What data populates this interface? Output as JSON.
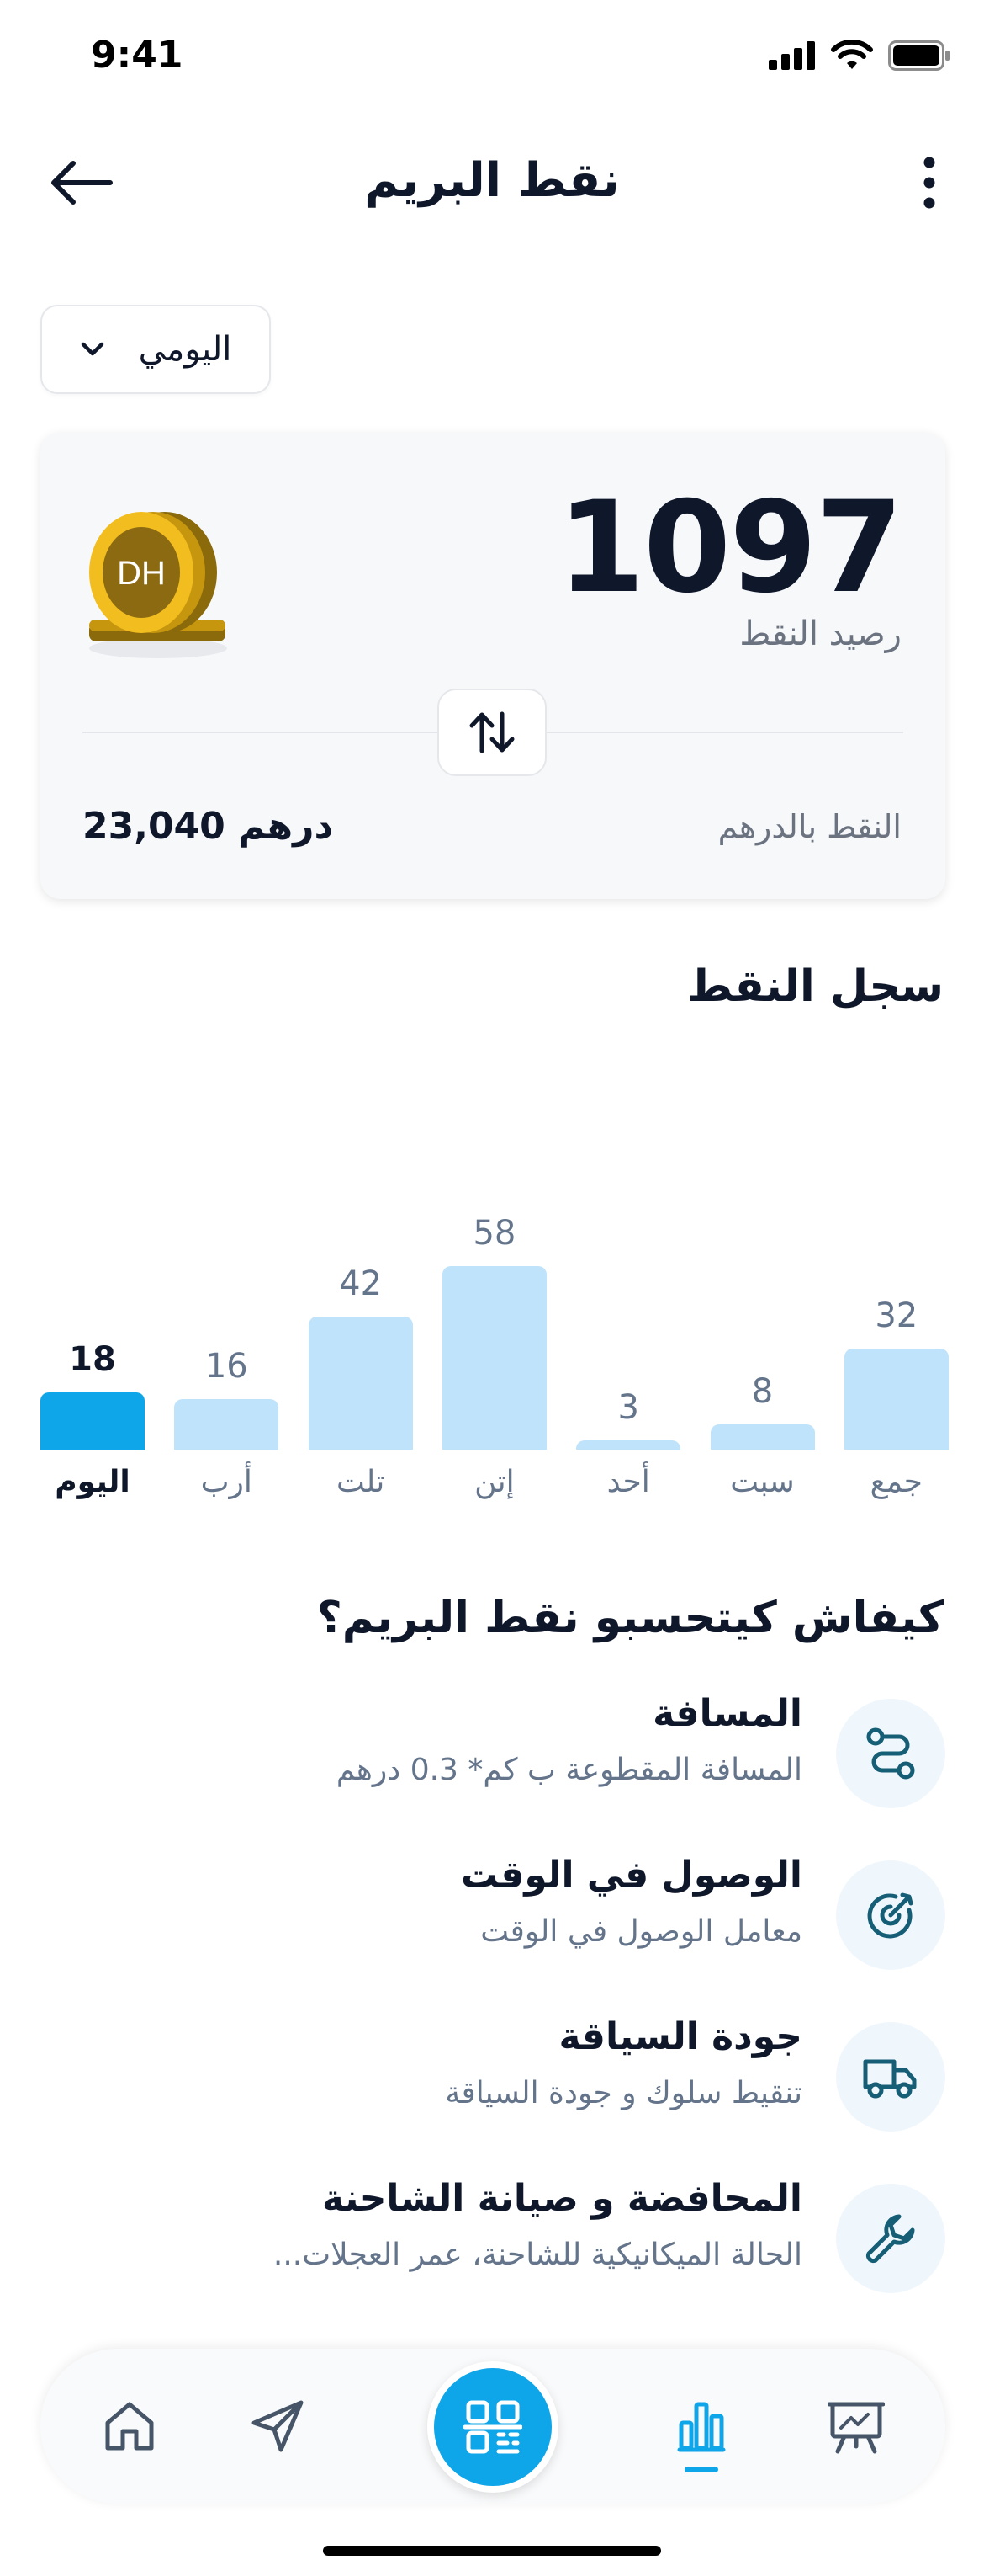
{
  "status_bar": {
    "time": "9:41"
  },
  "header": {
    "title": "نقط البريم"
  },
  "period_select": {
    "value": "اليومي"
  },
  "points_card": {
    "coin_text": "DH",
    "points": "1097",
    "points_label": "رصيد النقط",
    "dirham_label": "النقط بالدرهم",
    "dirham_value": "23,040 درهم"
  },
  "history": {
    "title": "سجل النقط"
  },
  "chart_data": {
    "type": "bar",
    "categories": [
      "اليوم",
      "أرب",
      "تلت",
      "إتن",
      "أحد",
      "سبت",
      "جمع"
    ],
    "values": [
      18,
      16,
      42,
      58,
      3,
      8,
      32
    ],
    "highlighted": "اليوم",
    "colors": {
      "highlight": "#0ea5e9",
      "default": "#bfe3fb"
    }
  },
  "how_section": {
    "title": "كيفاش كيتحسبو نقط البريم؟",
    "factors": [
      {
        "icon": "route-icon",
        "title": "المسافة",
        "desc": "المسافة المقطوعة ب كم* 0.3 درهم"
      },
      {
        "icon": "target-icon",
        "title": "الوصول في الوقت",
        "desc": "معامل الوصول في الوقت"
      },
      {
        "icon": "truck-icon",
        "title": "جودة السياقة",
        "desc": "تنقيط سلوك و جودة السياقة"
      },
      {
        "icon": "wrench-icon",
        "title": "المحافضة و صيانة الشاحنة",
        "desc": "الحالة الميكانيكية للشاحنة، عمر العجلات..."
      }
    ]
  },
  "bottom_nav": {
    "items": [
      "home-icon",
      "send-icon",
      "qr-scan-icon",
      "stats-icon",
      "presentation-icon"
    ],
    "active": "stats-icon"
  },
  "colors": {
    "accent": "#0ea5e9",
    "text": "#0f172a",
    "muted": "#64748b"
  }
}
